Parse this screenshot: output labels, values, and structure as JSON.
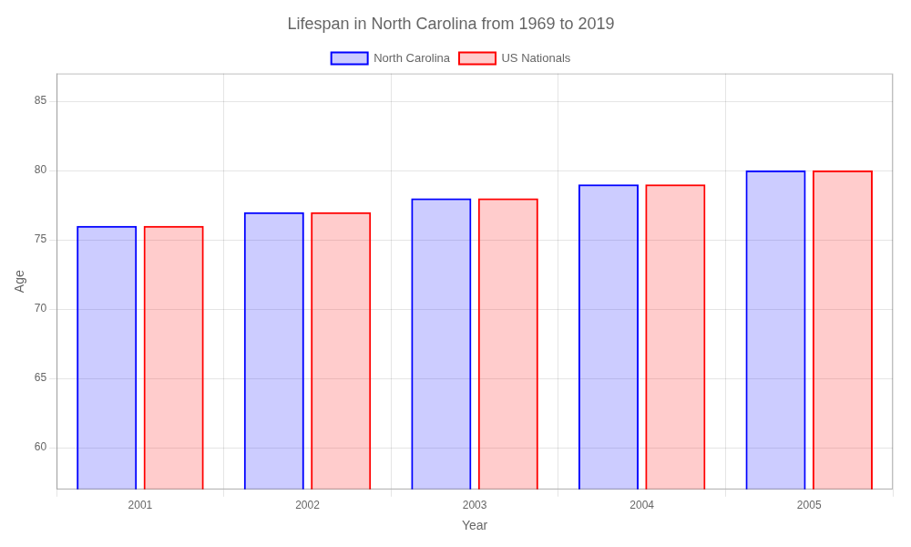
{
  "chart_data": {
    "type": "bar",
    "title": "Lifespan in North Carolina from 1969 to 2019",
    "x_label": "Year",
    "y_label": "Age",
    "categories": [
      "2001",
      "2002",
      "2003",
      "2004",
      "2005"
    ],
    "series": [
      {
        "name": "North Carolina",
        "color": "#0000ff",
        "values": [
          76,
          77,
          78,
          79,
          80
        ]
      },
      {
        "name": "US Nationals",
        "color": "#ff0000",
        "values": [
          76,
          77,
          78,
          79,
          80
        ]
      }
    ],
    "ylim": [
      57,
      87
    ],
    "yticks": [
      60,
      65,
      70,
      75,
      80,
      85
    ],
    "grid": true,
    "legend": "top"
  }
}
